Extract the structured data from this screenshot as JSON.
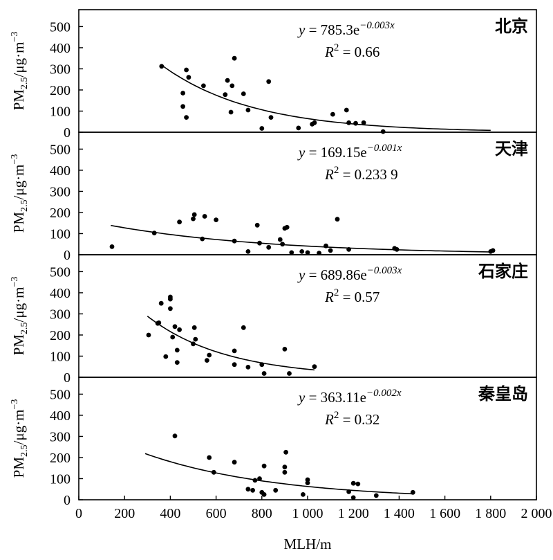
{
  "chart_data": {
    "type": "scatter",
    "xlabel": "MLH/m",
    "xlim": [
      0,
      2000
    ],
    "xticks": [
      0,
      200,
      400,
      600,
      800,
      1000,
      1200,
      1400,
      1600,
      1800,
      2000
    ],
    "xtick_labels": [
      "0",
      "200",
      "400",
      "600",
      "800",
      "1 000",
      "1 200",
      "1 400",
      "1 600",
      "1 800",
      "2 000"
    ],
    "ylim": [
      0,
      580
    ],
    "yticks": [
      0,
      100,
      200,
      300,
      400,
      500
    ],
    "grid": false,
    "panels": [
      {
        "city": "北京",
        "ylabel_main": "PM",
        "ylabel_sub": "2.5",
        "ylabel_unit": "/μg·m",
        "ylabel_sup": "−3",
        "equation": {
          "y": "y",
          "eq_a": " = 785.3e",
          "exp": "−0.003x"
        },
        "r2": {
          "R": "R",
          "sup": "2",
          "value": " = 0.66"
        },
        "fit": {
          "a": 785.3,
          "b": -0.0025,
          "x_range": [
            360,
            1800
          ]
        },
        "points": [
          [
            362,
            312
          ],
          [
            455,
            185
          ],
          [
            455,
            122
          ],
          [
            470,
            295
          ],
          [
            470,
            70
          ],
          [
            480,
            260
          ],
          [
            545,
            220
          ],
          [
            640,
            178
          ],
          [
            650,
            245
          ],
          [
            665,
            95
          ],
          [
            670,
            220
          ],
          [
            680,
            350
          ],
          [
            720,
            182
          ],
          [
            740,
            105
          ],
          [
            800,
            18
          ],
          [
            830,
            240
          ],
          [
            840,
            70
          ],
          [
            960,
            20
          ],
          [
            1020,
            38
          ],
          [
            1030,
            45
          ],
          [
            1110,
            85
          ],
          [
            1170,
            105
          ],
          [
            1180,
            45
          ],
          [
            1210,
            42
          ],
          [
            1245,
            45
          ],
          [
            1330,
            3
          ]
        ]
      },
      {
        "city": "天津",
        "ylabel_main": "PM",
        "ylabel_sub": "2.5",
        "ylabel_unit": "/μg·m",
        "ylabel_sup": "−3",
        "equation": {
          "y": "y",
          "eq_a": " = 169.15e",
          "exp": "−0.001x"
        },
        "r2": {
          "R": "R",
          "sup": "2",
          "value": " = 0.233 9"
        },
        "fit": {
          "a": 169.15,
          "b": -0.00142,
          "x_range": [
            140,
            1810
          ]
        },
        "points": [
          [
            145,
            38
          ],
          [
            330,
            103
          ],
          [
            440,
            155
          ],
          [
            500,
            170
          ],
          [
            505,
            190
          ],
          [
            540,
            75
          ],
          [
            550,
            182
          ],
          [
            600,
            165
          ],
          [
            680,
            65
          ],
          [
            740,
            15
          ],
          [
            780,
            140
          ],
          [
            790,
            55
          ],
          [
            830,
            35
          ],
          [
            880,
            72
          ],
          [
            890,
            50
          ],
          [
            900,
            125
          ],
          [
            910,
            130
          ],
          [
            930,
            10
          ],
          [
            975,
            15
          ],
          [
            1000,
            10
          ],
          [
            1080,
            42
          ],
          [
            1100,
            20
          ],
          [
            1130,
            168
          ],
          [
            1180,
            25
          ],
          [
            1380,
            30
          ],
          [
            1390,
            25
          ],
          [
            1800,
            15
          ],
          [
            1810,
            20
          ],
          [
            1050,
            8
          ]
        ]
      },
      {
        "city": "石家庄",
        "ylabel_main": "PM",
        "ylabel_sub": "2.5",
        "ylabel_unit": "/μg·m",
        "ylabel_sup": "−3",
        "equation": {
          "y": "y",
          "eq_a": " = 689.86e",
          "exp": "−0.003x"
        },
        "r2": {
          "R": "R",
          "sup": "2",
          "value": " = 0.57"
        },
        "fit": {
          "a": 689.86,
          "b": -0.0029,
          "x_range": [
            300,
            1030
          ]
        },
        "points": [
          [
            305,
            200
          ],
          [
            345,
            255
          ],
          [
            350,
            258
          ],
          [
            360,
            350
          ],
          [
            380,
            98
          ],
          [
            400,
            380
          ],
          [
            400,
            370
          ],
          [
            400,
            325
          ],
          [
            410,
            190
          ],
          [
            420,
            240
          ],
          [
            430,
            128
          ],
          [
            430,
            70
          ],
          [
            440,
            225
          ],
          [
            500,
            158
          ],
          [
            505,
            235
          ],
          [
            510,
            180
          ],
          [
            560,
            80
          ],
          [
            570,
            105
          ],
          [
            680,
            125
          ],
          [
            680,
            60
          ],
          [
            720,
            235
          ],
          [
            740,
            48
          ],
          [
            800,
            60
          ],
          [
            810,
            18
          ],
          [
            900,
            133
          ],
          [
            920,
            18
          ],
          [
            1030,
            50
          ]
        ]
      },
      {
        "city": "秦皇岛",
        "ylabel_main": "PM",
        "ylabel_sub": "2.5",
        "ylabel_unit": "/μg·m",
        "ylabel_sup": "−3",
        "equation": {
          "y": "y",
          "eq_a": " = 363.11e",
          "exp": "−0.002x"
        },
        "r2": {
          "R": "R",
          "sup": "2",
          "value": " = 0.32"
        },
        "fit": {
          "a": 363.11,
          "b": -0.00175,
          "x_range": [
            290,
            1460
          ]
        },
        "points": [
          [
            420,
            302
          ],
          [
            570,
            200
          ],
          [
            590,
            130
          ],
          [
            680,
            178
          ],
          [
            740,
            50
          ],
          [
            760,
            45
          ],
          [
            770,
            92
          ],
          [
            790,
            100
          ],
          [
            800,
            35
          ],
          [
            810,
            25
          ],
          [
            810,
            160
          ],
          [
            860,
            45
          ],
          [
            900,
            155
          ],
          [
            900,
            130
          ],
          [
            905,
            225
          ],
          [
            980,
            25
          ],
          [
            1000,
            95
          ],
          [
            1000,
            80
          ],
          [
            1180,
            38
          ],
          [
            1200,
            10
          ],
          [
            1200,
            78
          ],
          [
            1220,
            75
          ],
          [
            1300,
            20
          ],
          [
            1460,
            35
          ]
        ]
      }
    ]
  }
}
